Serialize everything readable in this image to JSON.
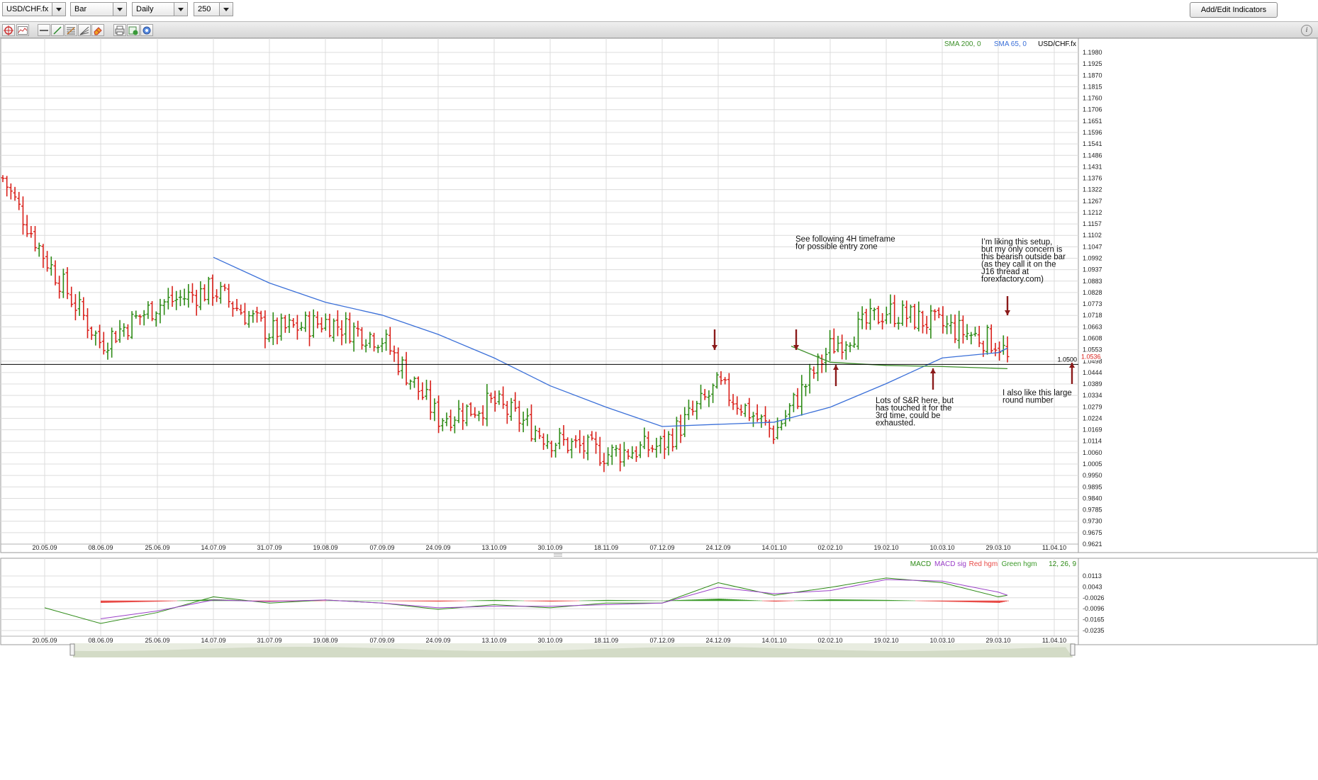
{
  "toolbar": {
    "symbol": "USD/CHF.fx",
    "chart_type": "Bar",
    "timeframe": "Daily",
    "bars": "250",
    "add_edit_indicators": "Add/Edit Indicators",
    "tools": [
      {
        "name": "crosshair-icon"
      },
      {
        "name": "chart-style-icon"
      },
      {
        "name": "horizontal-line-icon"
      },
      {
        "name": "trend-line-icon"
      },
      {
        "name": "fibonacci-icon"
      },
      {
        "name": "fibonacci-fan-icon"
      },
      {
        "name": "eraser-icon"
      },
      {
        "name": "print-icon"
      },
      {
        "name": "export-icon"
      },
      {
        "name": "settings-icon"
      }
    ],
    "info_icon": "i"
  },
  "colors": {
    "bull": "#2e8b17",
    "bear": "#d9201a",
    "sma65": "#3a6fd8",
    "sma200": "#3c8f28",
    "macd": "#2e8b17",
    "macd_sig": "#9b40c8",
    "hgm_red": "#e84a46",
    "hgm_green": "#3c9a2a",
    "arrow": "#8b1a1a",
    "grid": "#dcdcdc"
  },
  "chart_data": [
    {
      "type": "bar",
      "symbol": "USD/CHF.fx",
      "legend": [
        {
          "label": "SMA 200, 0",
          "color": "#3c8f28"
        },
        {
          "label": "SMA 65, 0",
          "color": "#3a6fd8"
        },
        {
          "label": "USD/CHF.fx",
          "color": "#000000"
        }
      ],
      "ylim": [
        0.9621,
        1.198
      ],
      "y_ticks": [
        "1.1980",
        "1.1925",
        "1.1870",
        "1.1815",
        "1.1760",
        "1.1706",
        "1.1651",
        "1.1596",
        "1.1541",
        "1.1486",
        "1.1431",
        "1.1376",
        "1.1322",
        "1.1267",
        "1.1212",
        "1.1157",
        "1.1102",
        "1.1047",
        "1.0992",
        "1.0937",
        "1.0883",
        "1.0828",
        "1.0773",
        "1.0718",
        "1.0663",
        "1.0608",
        "1.0553",
        "1.0498",
        "1.0444",
        "1.0389",
        "1.0334",
        "1.0279",
        "1.0224",
        "1.0169",
        "1.0114",
        "1.0060",
        "1.0005",
        "0.9950",
        "0.9895",
        "0.9840",
        "0.9785",
        "0.9730",
        "0.9675",
        "0.9621"
      ],
      "x_ticks": [
        "20.05.09",
        "08.06.09",
        "25.06.09",
        "14.07.09",
        "31.07.09",
        "19.08.09",
        "07.09.09",
        "24.09.09",
        "13.10.09",
        "30.10.09",
        "18.11.09",
        "07.12.09",
        "24.12.09",
        "14.01.10",
        "02.02.10",
        "19.02.10",
        "10.03.10",
        "29.03.10",
        "11.04.10"
      ],
      "close_anchors": [
        [
          "start",
          1.137
        ],
        [
          "20.05.09",
          1.1
        ],
        [
          "08.06.09",
          1.06
        ],
        [
          "25.06.09",
          1.078
        ],
        [
          "14.07.09",
          1.085
        ],
        [
          "31.07.09",
          1.065
        ],
        [
          "19.08.09",
          1.07
        ],
        [
          "07.09.09",
          1.062
        ],
        [
          "24.09.09",
          1.025
        ],
        [
          "13.10.09",
          1.032
        ],
        [
          "30.10.09",
          1.015
        ],
        [
          "18.11.09",
          1.008
        ],
        [
          "07.12.09",
          1.012
        ],
        [
          "24.12.09",
          1.04
        ],
        [
          "14.01.10",
          1.018
        ],
        [
          "02.02.10",
          1.058
        ],
        [
          "19.02.10",
          1.075
        ],
        [
          "10.03.10",
          1.068
        ],
        [
          "29.03.10",
          1.06
        ],
        [
          "last",
          1.0536
        ]
      ],
      "last_price": "1.0536",
      "horizontal_level": {
        "value": 1.05,
        "label": "1.0500"
      },
      "sma65_approx": [
        [
          "14.07.09",
          1.1
        ],
        [
          "31.07.09",
          1.088
        ],
        [
          "19.08.09",
          1.079
        ],
        [
          "07.09.09",
          1.073
        ],
        [
          "24.09.09",
          1.064
        ],
        [
          "13.10.09",
          1.053
        ],
        [
          "30.10.09",
          1.04
        ],
        [
          "18.11.09",
          1.03
        ],
        [
          "07.12.09",
          1.021
        ],
        [
          "24.12.09",
          1.022
        ],
        [
          "14.01.10",
          1.023
        ],
        [
          "02.02.10",
          1.03
        ],
        [
          "19.02.10",
          1.041
        ],
        [
          "10.03.10",
          1.053
        ],
        [
          "29.03.10",
          1.0555
        ],
        [
          "last",
          1.0576
        ]
      ],
      "sma200_approx": [
        [
          "14.01.10",
          1.0585
        ],
        [
          "02.02.10",
          1.051
        ],
        [
          "19.02.10",
          1.0495
        ],
        [
          "10.03.10",
          1.049
        ],
        [
          "last",
          1.048
        ]
      ],
      "annotations": [
        {
          "lines": [
            "See following 4H timeframe",
            "for possible entry zone"
          ]
        },
        {
          "lines": [
            "I’m liking this setup,",
            "but my only concern is",
            "this bearish outside bar",
            "(as they call it on the",
            "J16 thread at",
            "forexfactory.com)"
          ]
        },
        {
          "lines": [
            "Lots of S&R here, but",
            "has touched it for the",
            "3rd time, could be",
            "exhausted."
          ]
        },
        {
          "lines": [
            "I also like this large",
            "round number"
          ]
        }
      ],
      "arrows": [
        {
          "date": "24.12.09",
          "direction": "down"
        },
        {
          "date": "14.01.10+",
          "direction": "down"
        },
        {
          "date": "02.02.10",
          "direction": "up"
        },
        {
          "date": "10.03.10",
          "direction": "up"
        },
        {
          "date": "last",
          "direction": "down"
        },
        {
          "date": "right-edge",
          "direction": "up"
        }
      ]
    },
    {
      "type": "area",
      "title": "MACD",
      "legend": [
        {
          "label": "MACD",
          "color": "#2e8b17"
        },
        {
          "label": "MACD sig",
          "color": "#9b40c8"
        },
        {
          "label": "Red hgm",
          "color": "#e84a46"
        },
        {
          "label": "Green hgm",
          "color": "#3c9a2a"
        },
        {
          "label": "12, 26, 9",
          "color": "#2e8b17"
        }
      ],
      "ylim": [
        -0.0235,
        0.0113
      ],
      "y_ticks": [
        "0.0113",
        "0.0043",
        "-0.0026",
        "-0.0096",
        "-0.0165",
        "-0.0235"
      ],
      "x_ticks": [
        "20.05.09",
        "08.06.09",
        "25.06.09",
        "14.07.09",
        "31.07.09",
        "19.08.09",
        "07.09.09",
        "24.09.09",
        "13.10.09",
        "30.10.09",
        "18.11.09",
        "07.12.09",
        "24.12.09",
        "14.01.10",
        "02.02.10",
        "19.02.10",
        "10.03.10",
        "29.03.10",
        "11.04.10"
      ],
      "macd_approx": [
        [
          "20.05.09",
          -0.009
        ],
        [
          "08.06.09",
          -0.019
        ],
        [
          "25.06.09",
          -0.012
        ],
        [
          "14.07.09",
          -0.002
        ],
        [
          "31.07.09",
          -0.006
        ],
        [
          "19.08.09",
          -0.004
        ],
        [
          "07.09.09",
          -0.006
        ],
        [
          "24.09.09",
          -0.01
        ],
        [
          "13.10.09",
          -0.007
        ],
        [
          "30.10.09",
          -0.009
        ],
        [
          "18.11.09",
          -0.006
        ],
        [
          "07.12.09",
          -0.006
        ],
        [
          "24.12.09",
          0.007
        ],
        [
          "14.01.10",
          -0.001
        ],
        [
          "02.02.10",
          0.004
        ],
        [
          "19.02.10",
          0.01
        ],
        [
          "10.03.10",
          0.007
        ],
        [
          "29.03.10",
          -0.002
        ],
        [
          "last",
          -0.001
        ]
      ],
      "signal_approx": [
        [
          "08.06.09",
          -0.016
        ],
        [
          "25.06.09",
          -0.011
        ],
        [
          "14.07.09",
          -0.004
        ],
        [
          "31.07.09",
          -0.005
        ],
        [
          "19.08.09",
          -0.004
        ],
        [
          "07.09.09",
          -0.006
        ],
        [
          "24.09.09",
          -0.009
        ],
        [
          "13.10.09",
          -0.008
        ],
        [
          "30.10.09",
          -0.008
        ],
        [
          "18.11.09",
          -0.007
        ],
        [
          "07.12.09",
          -0.006
        ],
        [
          "24.12.09",
          0.004
        ],
        [
          "14.01.10",
          0.0
        ],
        [
          "02.02.10",
          0.002
        ],
        [
          "19.02.10",
          0.009
        ],
        [
          "10.03.10",
          0.008
        ],
        [
          "29.03.10",
          0.001
        ],
        [
          "last",
          -0.001
        ]
      ]
    }
  ]
}
